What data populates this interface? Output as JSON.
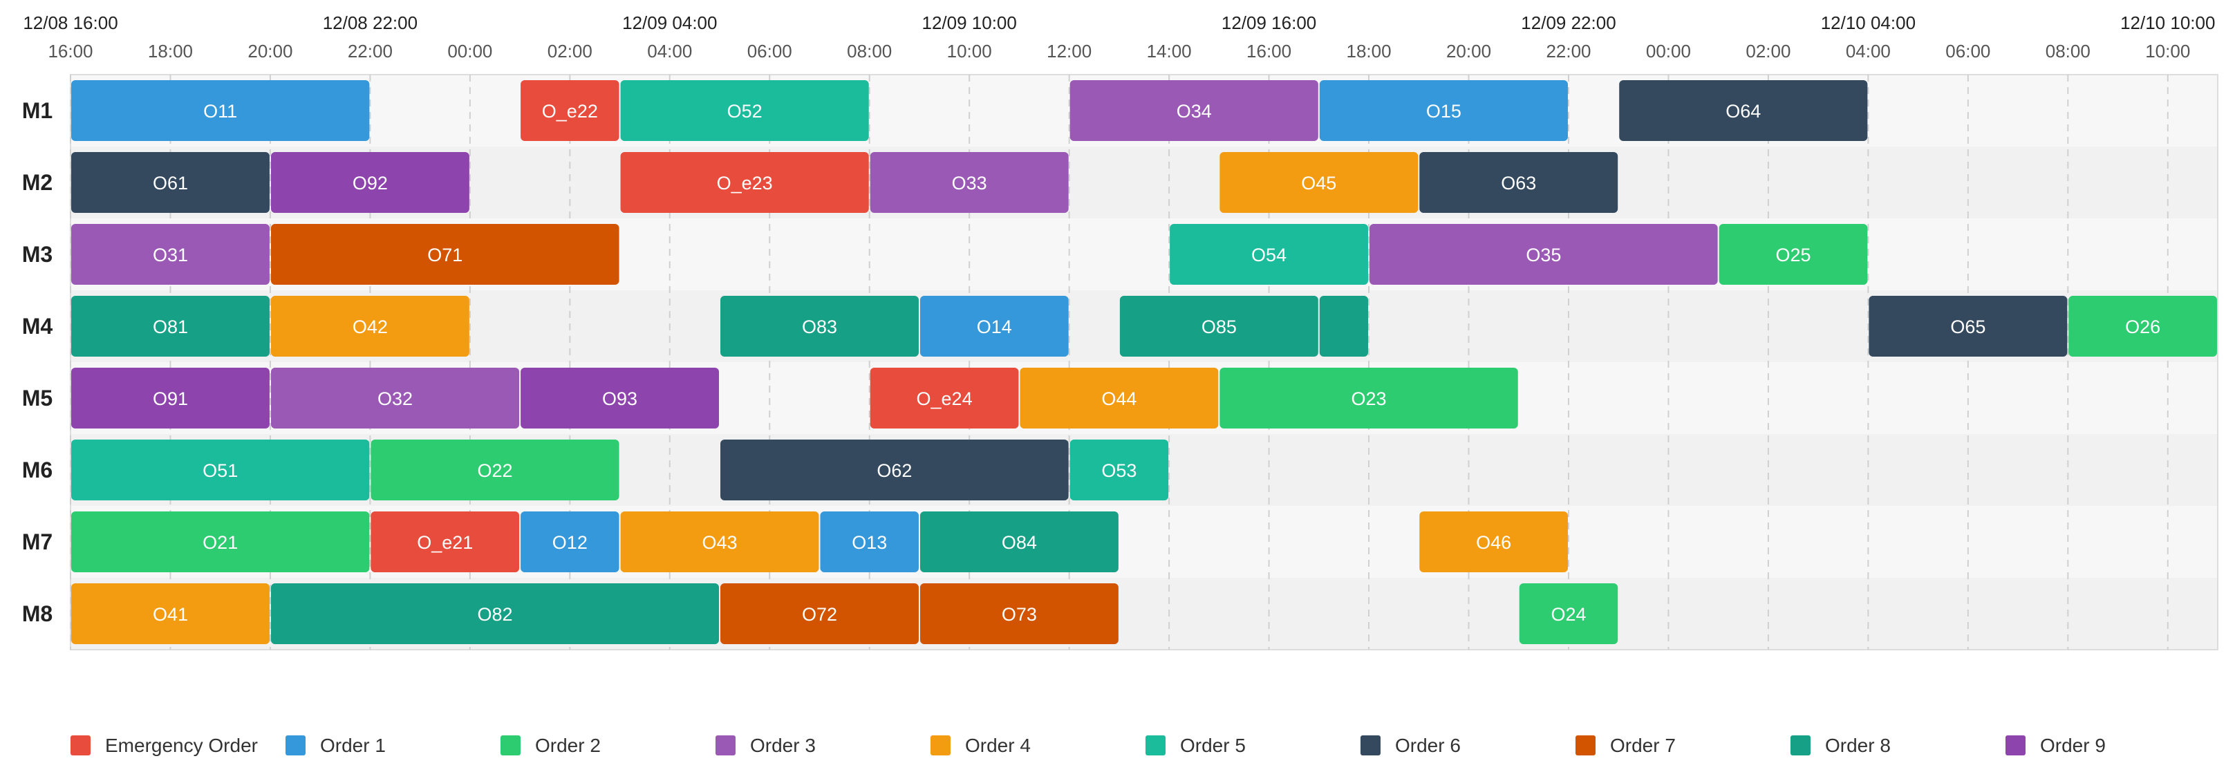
{
  "chart_data": {
    "type": "gantt",
    "time_start": "12/08 16:00",
    "time_end": "12/10 11:00",
    "major_ticks": [
      "12/08 16:00",
      "12/08 22:00",
      "12/09 04:00",
      "12/09 10:00",
      "12/09 16:00",
      "12/09 22:00",
      "12/10 04:00",
      "12/10 10:00"
    ],
    "minor_ticks": [
      "16:00",
      "18:00",
      "20:00",
      "22:00",
      "00:00",
      "02:00",
      "04:00",
      "06:00",
      "08:00",
      "10:00",
      "12:00",
      "14:00",
      "16:00",
      "18:00",
      "20:00",
      "22:00",
      "00:00",
      "02:00",
      "04:00",
      "06:00",
      "08:00",
      "10:00"
    ],
    "machines": [
      "M1",
      "M2",
      "M3",
      "M4",
      "M5",
      "M6",
      "M7",
      "M8"
    ],
    "tasks": [
      {
        "machine": "M1",
        "label": "O11",
        "order": "Order 1",
        "start": "12/08 16:00",
        "end": "12/08 22:00"
      },
      {
        "machine": "M1",
        "label": "O_e22",
        "order": "Emergency Order",
        "start": "12/09 01:00",
        "end": "12/09 03:00"
      },
      {
        "machine": "M1",
        "label": "O52",
        "order": "Order 5",
        "start": "12/09 03:00",
        "end": "12/09 08:00"
      },
      {
        "machine": "M1",
        "label": "O34",
        "order": "Order 3",
        "start": "12/09 12:00",
        "end": "12/09 17:00"
      },
      {
        "machine": "M1",
        "label": "O15",
        "order": "Order 1",
        "start": "12/09 17:00",
        "end": "12/09 22:00"
      },
      {
        "machine": "M1",
        "label": "O64",
        "order": "Order 6",
        "start": "12/09 23:00",
        "end": "12/10 04:00"
      },
      {
        "machine": "M2",
        "label": "O61",
        "order": "Order 6",
        "start": "12/08 16:00",
        "end": "12/08 20:00"
      },
      {
        "machine": "M2",
        "label": "O92",
        "order": "Order 9",
        "start": "12/08 20:00",
        "end": "12/09 00:00"
      },
      {
        "machine": "M2",
        "label": "O_e23",
        "order": "Emergency Order",
        "start": "12/09 03:00",
        "end": "12/09 08:00"
      },
      {
        "machine": "M2",
        "label": "O33",
        "order": "Order 3",
        "start": "12/09 08:00",
        "end": "12/09 12:00"
      },
      {
        "machine": "M2",
        "label": "O45",
        "order": "Order 4",
        "start": "12/09 15:00",
        "end": "12/09 19:00"
      },
      {
        "machine": "M2",
        "label": "O63",
        "order": "Order 6",
        "start": "12/09 19:00",
        "end": "12/09 23:00"
      },
      {
        "machine": "M3",
        "label": "O31",
        "order": "Order 3",
        "start": "12/08 16:00",
        "end": "12/08 20:00"
      },
      {
        "machine": "M3",
        "label": "O71",
        "order": "Order 7",
        "start": "12/08 20:00",
        "end": "12/09 03:00"
      },
      {
        "machine": "M3",
        "label": "O54",
        "order": "Order 5",
        "start": "12/09 14:00",
        "end": "12/09 18:00"
      },
      {
        "machine": "M3",
        "label": "O35",
        "order": "Order 3",
        "start": "12/09 18:00",
        "end": "12/10 01:00"
      },
      {
        "machine": "M3",
        "label": "O25",
        "order": "Order 2",
        "start": "12/10 01:00",
        "end": "12/10 04:00"
      },
      {
        "machine": "M4",
        "label": "O81",
        "order": "Order 8",
        "start": "12/08 16:00",
        "end": "12/08 20:00"
      },
      {
        "machine": "M4",
        "label": "O42",
        "order": "Order 4",
        "start": "12/08 20:00",
        "end": "12/09 00:00"
      },
      {
        "machine": "M4",
        "label": "O83",
        "order": "Order 8",
        "start": "12/09 05:00",
        "end": "12/09 09:00"
      },
      {
        "machine": "M4",
        "label": "O14",
        "order": "Order 1",
        "start": "12/09 09:00",
        "end": "12/09 12:00"
      },
      {
        "machine": "M4",
        "label": "O85",
        "order": "Order 8",
        "start": "12/09 13:00",
        "end": "12/09 17:00"
      },
      {
        "machine": "M4",
        "label": "",
        "order": "Order 8",
        "start": "12/09 17:00",
        "end": "12/09 18:00"
      },
      {
        "machine": "M4",
        "label": "O65",
        "order": "Order 6",
        "start": "12/10 04:00",
        "end": "12/10 08:00"
      },
      {
        "machine": "M4",
        "label": "O26",
        "order": "Order 2",
        "start": "12/10 08:00",
        "end": "12/10 11:00"
      },
      {
        "machine": "M5",
        "label": "O91",
        "order": "Order 9",
        "start": "12/08 16:00",
        "end": "12/08 20:00"
      },
      {
        "machine": "M5",
        "label": "O32",
        "order": "Order 3",
        "start": "12/08 20:00",
        "end": "12/09 01:00"
      },
      {
        "machine": "M5",
        "label": "O93",
        "order": "Order 9",
        "start": "12/09 01:00",
        "end": "12/09 05:00"
      },
      {
        "machine": "M5",
        "label": "O_e24",
        "order": "Emergency Order",
        "start": "12/09 08:00",
        "end": "12/09 11:00"
      },
      {
        "machine": "M5",
        "label": "O44",
        "order": "Order 4",
        "start": "12/09 11:00",
        "end": "12/09 15:00"
      },
      {
        "machine": "M5",
        "label": "O23",
        "order": "Order 2",
        "start": "12/09 15:00",
        "end": "12/09 21:00"
      },
      {
        "machine": "M6",
        "label": "O51",
        "order": "Order 5",
        "start": "12/08 16:00",
        "end": "12/08 22:00"
      },
      {
        "machine": "M6",
        "label": "O22",
        "order": "Order 2",
        "start": "12/08 22:00",
        "end": "12/09 03:00"
      },
      {
        "machine": "M6",
        "label": "O62",
        "order": "Order 6",
        "start": "12/09 05:00",
        "end": "12/09 12:00"
      },
      {
        "machine": "M6",
        "label": "O53",
        "order": "Order 5",
        "start": "12/09 12:00",
        "end": "12/09 14:00"
      },
      {
        "machine": "M7",
        "label": "O21",
        "order": "Order 2",
        "start": "12/08 16:00",
        "end": "12/08 22:00"
      },
      {
        "machine": "M7",
        "label": "O_e21",
        "order": "Emergency Order",
        "start": "12/08 22:00",
        "end": "12/09 01:00"
      },
      {
        "machine": "M7",
        "label": "O12",
        "order": "Order 1",
        "start": "12/09 01:00",
        "end": "12/09 03:00"
      },
      {
        "machine": "M7",
        "label": "O43",
        "order": "Order 4",
        "start": "12/09 03:00",
        "end": "12/09 07:00"
      },
      {
        "machine": "M7",
        "label": "O13",
        "order": "Order 1",
        "start": "12/09 07:00",
        "end": "12/09 09:00"
      },
      {
        "machine": "M7",
        "label": "O84",
        "order": "Order 8",
        "start": "12/09 09:00",
        "end": "12/09 13:00"
      },
      {
        "machine": "M7",
        "label": "O46",
        "order": "Order 4",
        "start": "12/09 19:00",
        "end": "12/09 22:00"
      },
      {
        "machine": "M8",
        "label": "O41",
        "order": "Order 4",
        "start": "12/08 16:00",
        "end": "12/08 20:00"
      },
      {
        "machine": "M8",
        "label": "O82",
        "order": "Order 8",
        "start": "12/08 20:00",
        "end": "12/09 05:00"
      },
      {
        "machine": "M8",
        "label": "O72",
        "order": "Order 7",
        "start": "12/09 05:00",
        "end": "12/09 09:00"
      },
      {
        "machine": "M8",
        "label": "O73",
        "order": "Order 7",
        "start": "12/09 09:00",
        "end": "12/09 13:00"
      },
      {
        "machine": "M8",
        "label": "O24",
        "order": "Order 2",
        "start": "12/09 21:00",
        "end": "12/09 23:00"
      }
    ],
    "legend": [
      {
        "name": "Emergency Order",
        "color": "#e74c3c"
      },
      {
        "name": "Order 1",
        "color": "#3498db"
      },
      {
        "name": "Order 2",
        "color": "#2ecc71"
      },
      {
        "name": "Order 3",
        "color": "#9b59b6"
      },
      {
        "name": "Order 4",
        "color": "#f39c12"
      },
      {
        "name": "Order 5",
        "color": "#1abc9c"
      },
      {
        "name": "Order 6",
        "color": "#34495e"
      },
      {
        "name": "Order 7",
        "color": "#d35400"
      },
      {
        "name": "Order 8",
        "color": "#16a085"
      },
      {
        "name": "Order 9",
        "color": "#8e44ad"
      }
    ],
    "legend_placement": "bottom",
    "grid": true
  }
}
